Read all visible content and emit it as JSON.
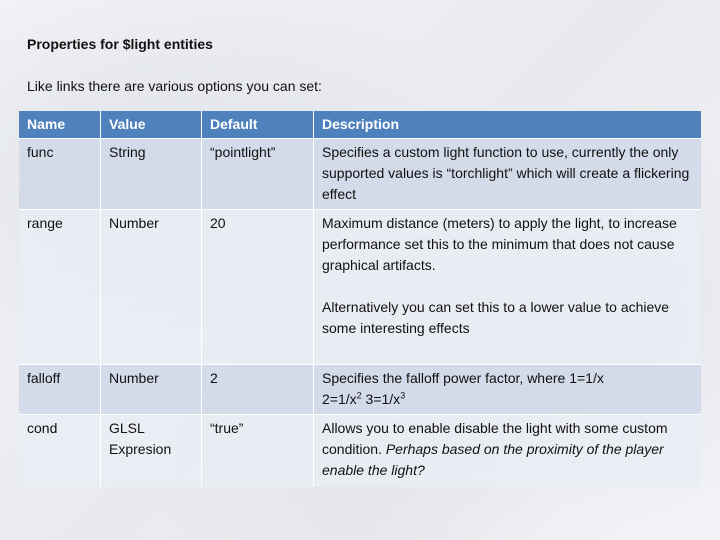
{
  "title": "Properties for $light entities",
  "intro": "Like links there are various options you can set:",
  "table": {
    "headers": [
      "Name",
      "Value",
      "Default",
      "Description"
    ],
    "rows": [
      {
        "name": "func",
        "value": "String",
        "default": "“pointlight”",
        "description": "Specifies a custom light function to use, currently the only supported values is “torchlight” which will create a flickering effect"
      },
      {
        "name": "range",
        "value": "Number",
        "default": "20",
        "description": "Maximum distance (meters) to apply the light, to increase performance set this to the minimum that does not cause graphical artifacts.",
        "description2": "Alternatively you can set this to a lower value to achieve some interesting effects"
      },
      {
        "name": "falloff",
        "value": "Number",
        "default": "2",
        "desc_a": "Specifies the falloff power factor, where 1=1/x",
        "desc_b": "2=1/x",
        "sup1": "2",
        "desc_c": " 3=1/x",
        "sup2": "3"
      },
      {
        "name": "cond",
        "value": "GLSL Expresion",
        "default": "“true”",
        "description": "Allows you to enable disable the light with some custom condition. ",
        "description_italic": "Perhaps based on the proximity of the player enable the light?"
      }
    ]
  }
}
